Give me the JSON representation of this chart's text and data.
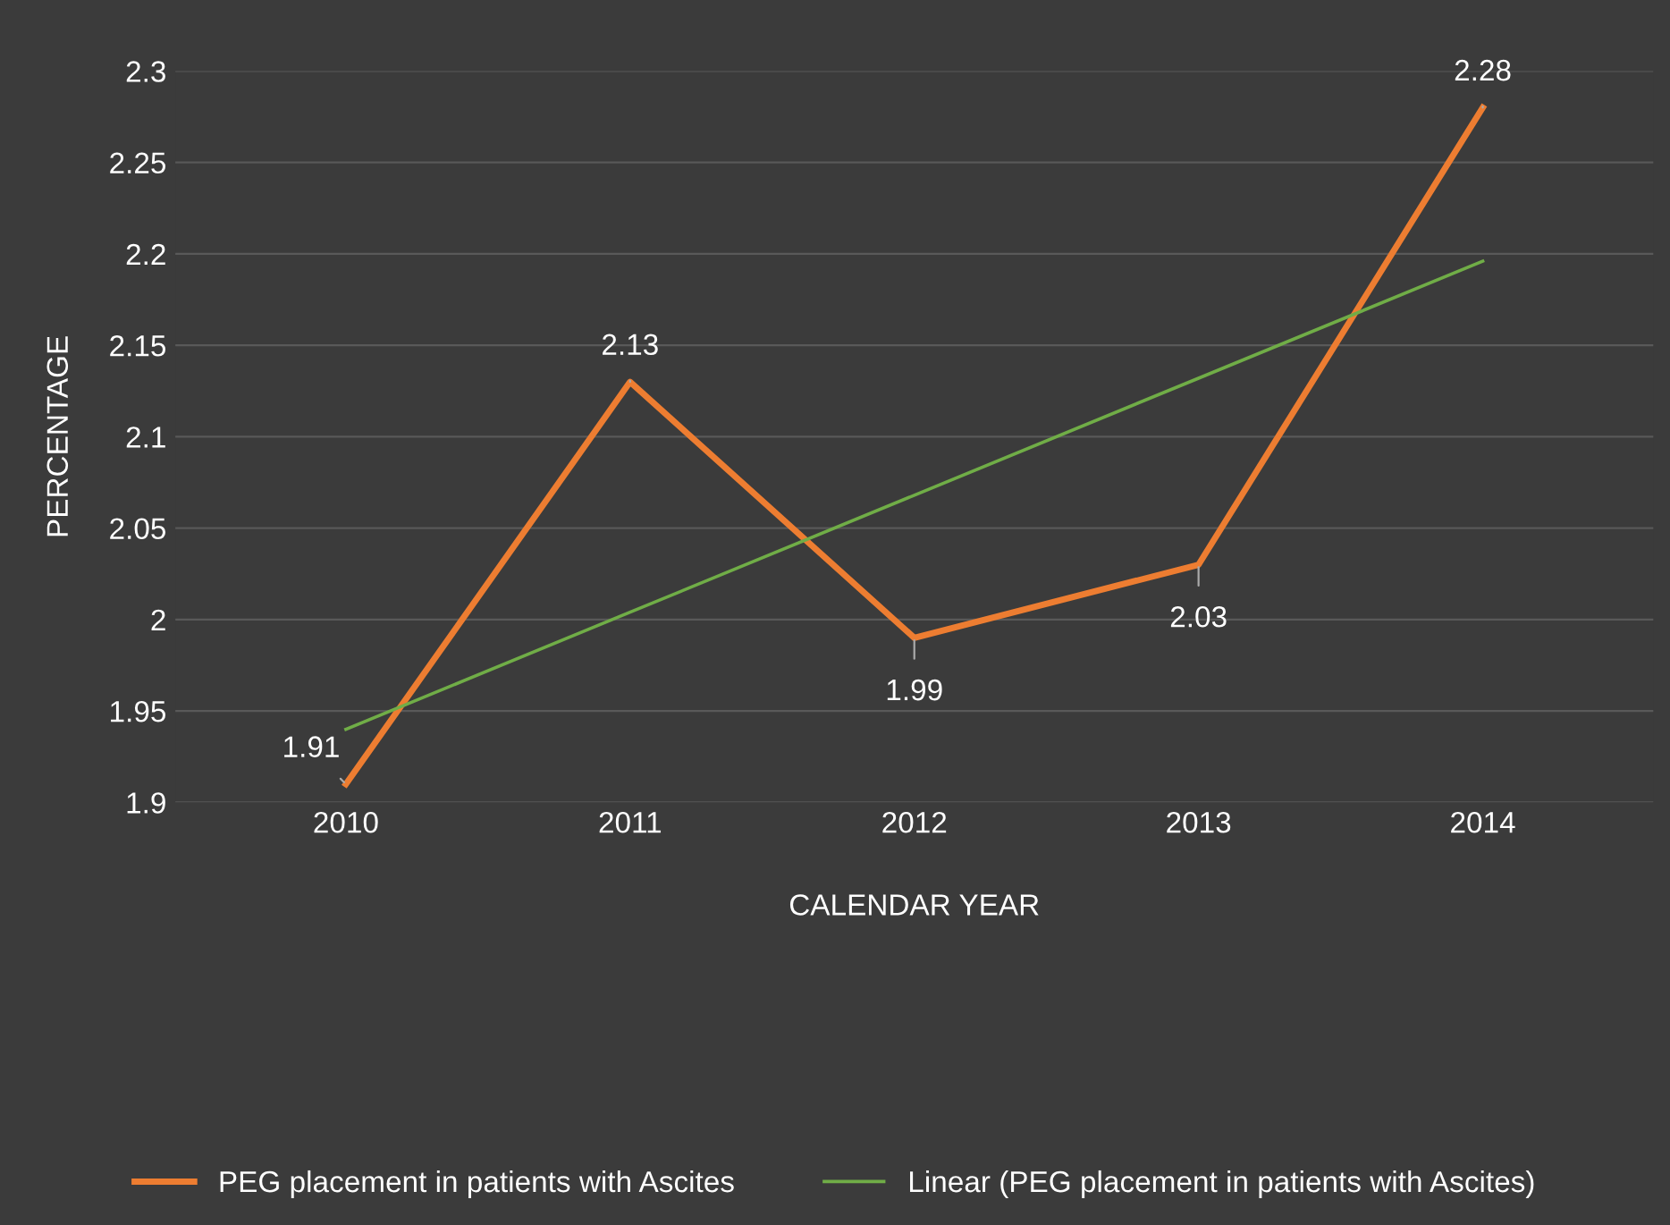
{
  "chart_data": {
    "type": "line",
    "xlabel": "CALENDAR YEAR",
    "ylabel": "PERCENTAGE",
    "categories": [
      "2010",
      "2011",
      "2012",
      "2013",
      "2014"
    ],
    "series": [
      {
        "name": "PEG placement in patients with Ascites",
        "color": "#ed7d31",
        "values": [
          1.91,
          2.13,
          1.99,
          2.03,
          2.28
        ],
        "value_labels": [
          "1.91",
          "2.13",
          "1.99",
          "2.03",
          "2.28"
        ]
      },
      {
        "name": "Linear (PEG placement in patients with Ascites)",
        "color": "#70ad47",
        "values": [
          1.94,
          2.004,
          2.068,
          2.132,
          2.196
        ]
      }
    ],
    "ylim": [
      1.9,
      2.3
    ],
    "yticks": [
      1.9,
      1.95,
      2,
      2.05,
      2.1,
      2.15,
      2.2,
      2.25,
      2.3
    ],
    "grid": "y",
    "legend": "bottom",
    "marker": "none",
    "line_style": "solid"
  }
}
